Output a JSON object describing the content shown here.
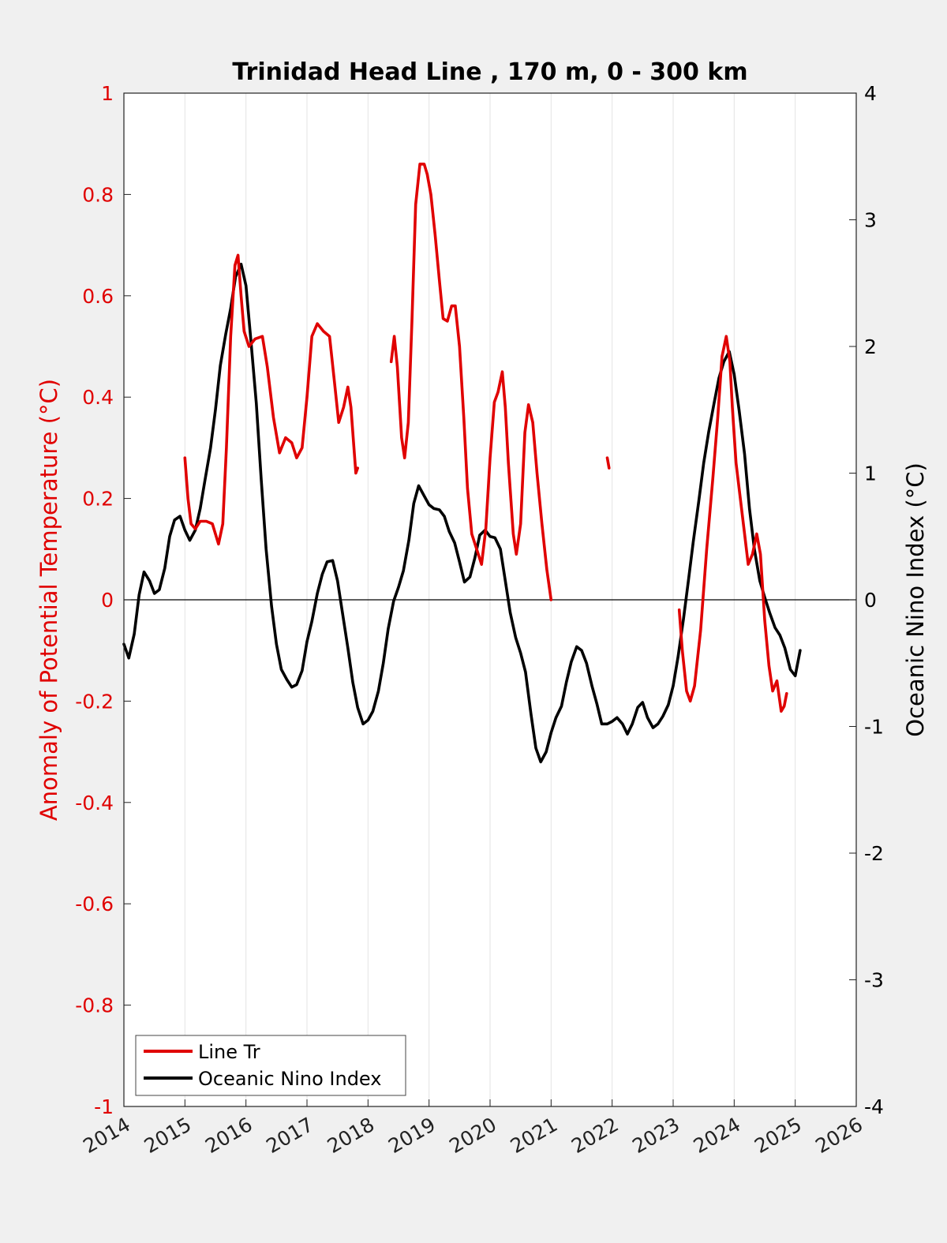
{
  "chart_data": {
    "type": "line",
    "title": "Trinidad Head Line , 170 m, 0 - 300 km",
    "xlabel": "",
    "ylabel": "Anomaly of Potential Temperature (°C)",
    "y2label": "Oceanic Nino Index (°C)",
    "xlim": [
      2014,
      2026
    ],
    "ylim": [
      -1,
      1
    ],
    "y2lim": [
      -4,
      4
    ],
    "xticks": [
      "2014",
      "2015",
      "2016",
      "2017",
      "2018",
      "2019",
      "2020",
      "2021",
      "2022",
      "2023",
      "2024",
      "2025",
      "2026"
    ],
    "yticks": [
      "1",
      "0.8",
      "0.6",
      "0.4",
      "0.2",
      "0",
      "-0.2",
      "-0.4",
      "-0.6",
      "-0.8",
      "-1"
    ],
    "y2ticks": [
      "4",
      "3",
      "2",
      "1",
      "0",
      "-1",
      "-2",
      "-3",
      "-4"
    ],
    "grid": "vertical",
    "legend_position": "bottom-left",
    "colors": {
      "red_axis": "#e00000",
      "line_tr": "#e00000",
      "oni": "#000000"
    },
    "series": [
      {
        "name": "Line Tr",
        "axis": "left",
        "segments": [
          [
            [
              2015.0,
              0.28
            ],
            [
              2015.05,
              0.2
            ],
            [
              2015.1,
              0.15
            ],
            [
              2015.17,
              0.14
            ],
            [
              2015.25,
              0.155
            ],
            [
              2015.35,
              0.155
            ],
            [
              2015.45,
              0.15
            ],
            [
              2015.55,
              0.11
            ],
            [
              2015.62,
              0.15
            ],
            [
              2015.68,
              0.3
            ],
            [
              2015.75,
              0.52
            ],
            [
              2015.82,
              0.66
            ],
            [
              2015.87,
              0.68
            ],
            [
              2015.92,
              0.6
            ],
            [
              2015.97,
              0.53
            ],
            [
              2016.05,
              0.5
            ],
            [
              2016.15,
              0.515
            ],
            [
              2016.27,
              0.52
            ],
            [
              2016.35,
              0.46
            ],
            [
              2016.45,
              0.36
            ],
            [
              2016.55,
              0.29
            ],
            [
              2016.65,
              0.32
            ],
            [
              2016.75,
              0.31
            ],
            [
              2016.83,
              0.28
            ],
            [
              2016.92,
              0.3
            ],
            [
              2017.0,
              0.4
            ],
            [
              2017.08,
              0.52
            ],
            [
              2017.17,
              0.545
            ],
            [
              2017.27,
              0.53
            ],
            [
              2017.37,
              0.52
            ],
            [
              2017.45,
              0.43
            ],
            [
              2017.52,
              0.35
            ],
            [
              2017.6,
              0.38
            ],
            [
              2017.67,
              0.42
            ],
            [
              2017.72,
              0.38
            ],
            [
              2017.77,
              0.3
            ],
            [
              2017.8,
              0.25
            ],
            [
              2017.83,
              0.26
            ]
          ],
          [
            [
              2018.38,
              0.47
            ],
            [
              2018.43,
              0.52
            ],
            [
              2018.48,
              0.46
            ],
            [
              2018.55,
              0.32
            ],
            [
              2018.6,
              0.28
            ],
            [
              2018.66,
              0.35
            ],
            [
              2018.72,
              0.55
            ],
            [
              2018.78,
              0.78
            ],
            [
              2018.85,
              0.86
            ],
            [
              2018.92,
              0.86
            ],
            [
              2018.97,
              0.84
            ],
            [
              2019.03,
              0.8
            ],
            [
              2019.1,
              0.72
            ],
            [
              2019.17,
              0.63
            ],
            [
              2019.23,
              0.555
            ],
            [
              2019.3,
              0.55
            ],
            [
              2019.37,
              0.58
            ],
            [
              2019.43,
              0.58
            ],
            [
              2019.5,
              0.5
            ],
            [
              2019.57,
              0.36
            ],
            [
              2019.63,
              0.22
            ],
            [
              2019.7,
              0.13
            ],
            [
              2019.78,
              0.1
            ],
            [
              2019.86,
              0.07
            ],
            [
              2019.93,
              0.14
            ],
            [
              2020.0,
              0.28
            ],
            [
              2020.07,
              0.39
            ],
            [
              2020.13,
              0.41
            ],
            [
              2020.2,
              0.45
            ],
            [
              2020.25,
              0.38
            ],
            [
              2020.3,
              0.27
            ],
            [
              2020.38,
              0.13
            ],
            [
              2020.43,
              0.09
            ],
            [
              2020.5,
              0.15
            ],
            [
              2020.57,
              0.33
            ],
            [
              2020.63,
              0.385
            ],
            [
              2020.7,
              0.35
            ],
            [
              2020.77,
              0.25
            ],
            [
              2020.85,
              0.15
            ],
            [
              2020.93,
              0.06
            ],
            [
              2021.0,
              0.0
            ]
          ],
          [
            [
              2021.92,
              0.28
            ],
            [
              2021.95,
              0.26
            ]
          ],
          [
            [
              2023.1,
              -0.02
            ],
            [
              2023.15,
              -0.1
            ],
            [
              2023.22,
              -0.18
            ],
            [
              2023.28,
              -0.2
            ],
            [
              2023.35,
              -0.17
            ],
            [
              2023.45,
              -0.06
            ],
            [
              2023.55,
              0.1
            ],
            [
              2023.65,
              0.24
            ],
            [
              2023.73,
              0.36
            ],
            [
              2023.8,
              0.48
            ],
            [
              2023.87,
              0.52
            ],
            [
              2023.93,
              0.47
            ],
            [
              2023.97,
              0.38
            ],
            [
              2024.03,
              0.27
            ],
            [
              2024.1,
              0.2
            ],
            [
              2024.17,
              0.13
            ],
            [
              2024.23,
              0.07
            ],
            [
              2024.3,
              0.09
            ],
            [
              2024.37,
              0.13
            ],
            [
              2024.43,
              0.09
            ],
            [
              2024.5,
              -0.04
            ],
            [
              2024.57,
              -0.13
            ],
            [
              2024.63,
              -0.18
            ],
            [
              2024.7,
              -0.16
            ],
            [
              2024.77,
              -0.22
            ],
            [
              2024.82,
              -0.21
            ],
            [
              2024.86,
              -0.185
            ]
          ]
        ]
      },
      {
        "name": "Oceanic Nino Index",
        "axis": "right",
        "segments": [
          [
            [
              2014.0,
              -0.35
            ],
            [
              2014.08,
              -0.46
            ],
            [
              2014.17,
              -0.27
            ],
            [
              2014.25,
              0.04
            ],
            [
              2014.33,
              0.22
            ],
            [
              2014.42,
              0.15
            ],
            [
              2014.5,
              0.05
            ],
            [
              2014.58,
              0.08
            ],
            [
              2014.67,
              0.25
            ],
            [
              2014.75,
              0.5
            ],
            [
              2014.83,
              0.63
            ],
            [
              2014.92,
              0.66
            ],
            [
              2015.0,
              0.55
            ],
            [
              2015.08,
              0.47
            ],
            [
              2015.17,
              0.55
            ],
            [
              2015.25,
              0.72
            ],
            [
              2015.33,
              0.95
            ],
            [
              2015.42,
              1.2
            ],
            [
              2015.5,
              1.5
            ],
            [
              2015.58,
              1.85
            ],
            [
              2015.67,
              2.1
            ],
            [
              2015.75,
              2.3
            ],
            [
              2015.83,
              2.55
            ],
            [
              2015.92,
              2.65
            ],
            [
              2016.0,
              2.48
            ],
            [
              2016.08,
              2.05
            ],
            [
              2016.17,
              1.55
            ],
            [
              2016.25,
              0.95
            ],
            [
              2016.33,
              0.4
            ],
            [
              2016.42,
              -0.05
            ],
            [
              2016.5,
              -0.35
            ],
            [
              2016.58,
              -0.55
            ],
            [
              2016.67,
              -0.63
            ],
            [
              2016.75,
              -0.69
            ],
            [
              2016.83,
              -0.67
            ],
            [
              2016.92,
              -0.56
            ],
            [
              2017.0,
              -0.33
            ],
            [
              2017.08,
              -0.17
            ],
            [
              2017.17,
              0.05
            ],
            [
              2017.25,
              0.2
            ],
            [
              2017.33,
              0.3
            ],
            [
              2017.42,
              0.31
            ],
            [
              2017.5,
              0.15
            ],
            [
              2017.58,
              -0.1
            ],
            [
              2017.67,
              -0.38
            ],
            [
              2017.75,
              -0.65
            ],
            [
              2017.83,
              -0.85
            ],
            [
              2017.92,
              -0.98
            ],
            [
              2018.0,
              -0.95
            ],
            [
              2018.08,
              -0.88
            ],
            [
              2018.17,
              -0.72
            ],
            [
              2018.25,
              -0.5
            ],
            [
              2018.33,
              -0.23
            ],
            [
              2018.42,
              -0.01
            ],
            [
              2018.5,
              0.1
            ],
            [
              2018.58,
              0.23
            ],
            [
              2018.67,
              0.47
            ],
            [
              2018.75,
              0.76
            ],
            [
              2018.83,
              0.9
            ],
            [
              2018.92,
              0.82
            ],
            [
              2019.0,
              0.75
            ],
            [
              2019.08,
              0.72
            ],
            [
              2019.17,
              0.71
            ],
            [
              2019.25,
              0.66
            ],
            [
              2019.33,
              0.54
            ],
            [
              2019.42,
              0.45
            ],
            [
              2019.5,
              0.3
            ],
            [
              2019.58,
              0.14
            ],
            [
              2019.67,
              0.18
            ],
            [
              2019.75,
              0.33
            ],
            [
              2019.83,
              0.51
            ],
            [
              2019.92,
              0.55
            ],
            [
              2020.0,
              0.5
            ],
            [
              2020.08,
              0.49
            ],
            [
              2020.17,
              0.4
            ],
            [
              2020.25,
              0.15
            ],
            [
              2020.33,
              -0.1
            ],
            [
              2020.42,
              -0.3
            ],
            [
              2020.5,
              -0.42
            ],
            [
              2020.58,
              -0.57
            ],
            [
              2020.67,
              -0.9
            ],
            [
              2020.75,
              -1.17
            ],
            [
              2020.83,
              -1.28
            ],
            [
              2020.92,
              -1.2
            ],
            [
              2021.0,
              -1.05
            ],
            [
              2021.08,
              -0.93
            ],
            [
              2021.17,
              -0.84
            ],
            [
              2021.25,
              -0.65
            ],
            [
              2021.33,
              -0.49
            ],
            [
              2021.42,
              -0.37
            ],
            [
              2021.5,
              -0.4
            ],
            [
              2021.58,
              -0.5
            ],
            [
              2021.67,
              -0.68
            ],
            [
              2021.75,
              -0.82
            ],
            [
              2021.83,
              -0.98
            ],
            [
              2021.92,
              -0.98
            ],
            [
              2022.0,
              -0.96
            ],
            [
              2022.08,
              -0.93
            ],
            [
              2022.17,
              -0.98
            ],
            [
              2022.25,
              -1.06
            ],
            [
              2022.33,
              -0.98
            ],
            [
              2022.42,
              -0.85
            ],
            [
              2022.5,
              -0.81
            ],
            [
              2022.58,
              -0.93
            ],
            [
              2022.67,
              -1.01
            ],
            [
              2022.75,
              -0.98
            ],
            [
              2022.83,
              -0.92
            ],
            [
              2022.92,
              -0.83
            ],
            [
              2023.0,
              -0.68
            ],
            [
              2023.08,
              -0.45
            ],
            [
              2023.17,
              -0.15
            ],
            [
              2023.25,
              0.15
            ],
            [
              2023.33,
              0.46
            ],
            [
              2023.42,
              0.78
            ],
            [
              2023.5,
              1.08
            ],
            [
              2023.58,
              1.32
            ],
            [
              2023.67,
              1.55
            ],
            [
              2023.75,
              1.75
            ],
            [
              2023.83,
              1.88
            ],
            [
              2023.92,
              1.96
            ],
            [
              2024.0,
              1.78
            ],
            [
              2024.08,
              1.5
            ],
            [
              2024.17,
              1.15
            ],
            [
              2024.25,
              0.72
            ],
            [
              2024.33,
              0.4
            ],
            [
              2024.42,
              0.15
            ],
            [
              2024.5,
              0.02
            ],
            [
              2024.58,
              -0.1
            ],
            [
              2024.67,
              -0.22
            ],
            [
              2024.75,
              -0.28
            ],
            [
              2024.83,
              -0.38
            ],
            [
              2024.92,
              -0.55
            ],
            [
              2025.0,
              -0.6
            ],
            [
              2025.08,
              -0.4
            ]
          ]
        ]
      }
    ]
  }
}
